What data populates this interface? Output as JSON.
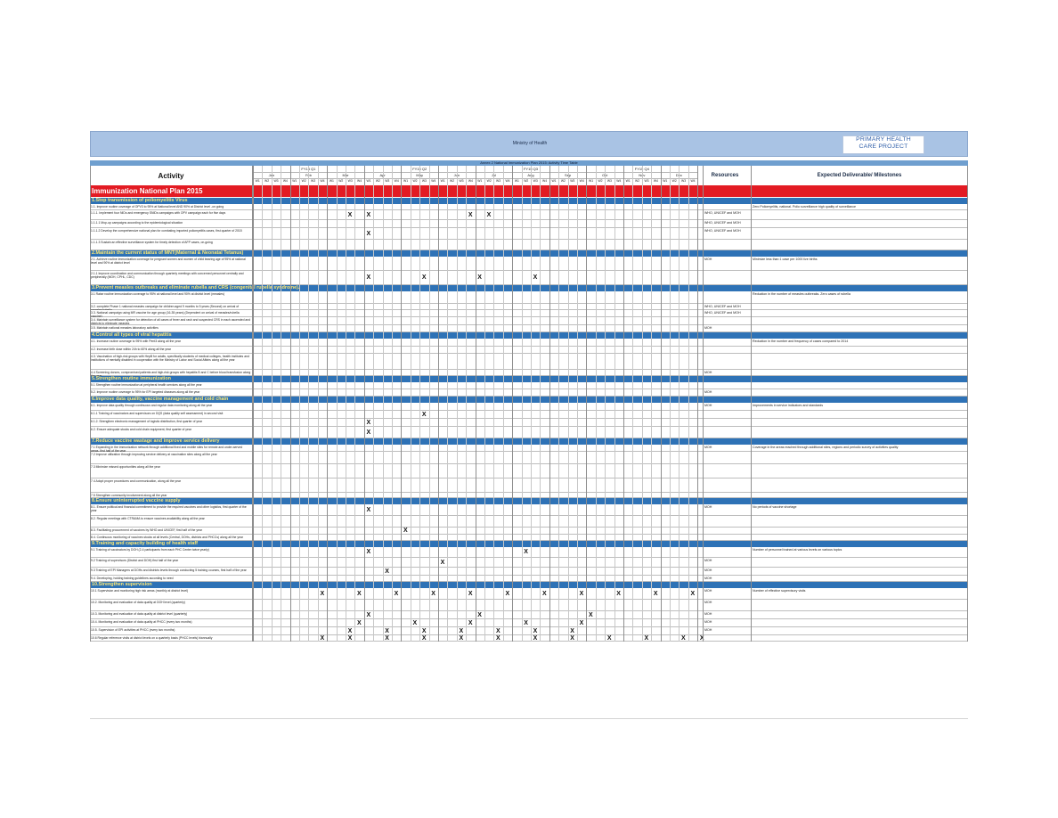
{
  "header": {
    "ministry": "Ministry of Health",
    "logo_line1": "PRIMARY HEALTH",
    "logo_line2": "CARE PROJECT"
  },
  "annex_title": "Annex 2 National Immunization Plan 2015: Activity Time Table",
  "columns": {
    "activity": "Activity",
    "resources": "Resources",
    "deliverables": "Expected Deliverable/ Milestones",
    "quarters": [
      "FY15 Q1",
      "FY15 Q2",
      "FY15 Q3",
      "FY15 Q4"
    ],
    "months": [
      "Jan",
      "Feb",
      "Mar",
      "Apr",
      "May",
      "Jun",
      "Jul",
      "Aug",
      "Sep",
      "Oct",
      "Nov",
      "Dec"
    ],
    "weeks": [
      "W1",
      "W2",
      "W3",
      "W4"
    ]
  },
  "plan_title": "Immunization National Plan 2015",
  "mark_symbol": "X",
  "sections": [
    {
      "title": "1.Stop transmission of poliomyelitis Virus",
      "rows": [
        {
          "activity": "1.1. Improve routine coverage of OPV3 to 95% at National level AND 90% at District level -on going",
          "res": "",
          "del": "Zero Poliomyelitis, national. Polio surveillance high quality of surveillance",
          "marks": [],
          "h": 7
        },
        {
          "activity": "1.1.1. Implement four NIDs and emergency SNIDs campaigns with OPV campaign each for five days",
          "res": "WHO, UNICEF and MOH",
          "del": "",
          "marks": [
            10,
            12,
            23,
            25
          ],
          "h": 11
        },
        {
          "activity": "1.1.1.1 Mop-up campaigns according to the epidemiological situation",
          "res": "WHO, UNICEF and MOH",
          "del": "",
          "marks": [],
          "h": 9
        },
        {
          "activity": "1.1.1.2 Develop the comprehensive national plan for combating imported poliomyelitis cases, first quarter of 2015",
          "res": "WHO, UNICEF and MOH",
          "del": "",
          "marks": [
            12
          ],
          "h": 13
        },
        {
          "activity": "1.1.1.3 Sustain an effective surveillance system for timely detection of AFP cases, on-going",
          "res": "",
          "del": "",
          "marks": [],
          "h": 12
        }
      ]
    },
    {
      "title": "2.Maintain the current status of MNT(Maternal & Neonatal Tetanus)",
      "rows": [
        {
          "activity": "2.1. Achieve routine immunization coverage for pregnant women and women of child bearing age of 95% at national level and 90% at district level",
          "res": "MOH",
          "del": "Minimize less than 1 case per 1000 live births",
          "marks": [],
          "h": 16
        },
        {
          "activity": "2.1.1 Improve coordination and communication through quarterly meetings with concerned personnel centrally and peripherally (MOH, CPHL, CDC)",
          "res": "",
          "del": "",
          "marks": [
            12,
            18,
            24,
            30
          ],
          "h": 16
        }
      ]
    },
    {
      "title": "3.Prevent measles outbreaks and eliminate rubella and CRS (congenital rubella syndrome).",
      "rows": [
        {
          "activity": "3.1 Raise routine immunization coverage to 95% at national level and 90% at district level (measles)",
          "res": "",
          "del": "Reduction in the number of measles outbreaks. Zero cases of rubella",
          "marks": [],
          "h": 14
        },
        {
          "activity": "3.2. complete Phase 1 national measles campaign for children aged 9 months to 5 years (Second) on arrival of measles/rubella",
          "res": "WHO, UNICEF and MOH",
          "del": "",
          "marks": [],
          "h": 7
        },
        {
          "activity": "3.3. National campaign using MR vaccine for age group (16-35 years) (Dependent on arrival of measles/rubella vaccine)",
          "res": "WHO, UNICEF and MOH",
          "del": "",
          "marks": [],
          "h": 8
        },
        {
          "activity": "3.4. Maintain surveillance system for detection of all cases of fever and rash and suspected CRS in each ascended and districts to eliminate measles",
          "res": "",
          "del": "",
          "marks": [],
          "h": 9
        },
        {
          "activity": "3.5. Maintain national measles laboratory activities",
          "res": "MOH",
          "del": "",
          "marks": [],
          "h": 8
        }
      ]
    },
    {
      "title": "4.Control all types of viral hepatitis",
      "rows": [
        {
          "activity": "4.1. Increase routine coverage to 95% with Pent3 along all the year",
          "res": "",
          "del": "Reduction in the number and frequency of cases compared to 2014",
          "marks": [],
          "h": 9
        },
        {
          "activity": "4.2. Increase birth dose within 24h to 60% along all the year",
          "res": "",
          "del": "",
          "marks": [],
          "h": 8
        },
        {
          "activity": "4.3. Vaccination of high-risk groups with HepB for adults, specifically students of medical colleges, health institutes and institutions of mentally disabled in cooperation with the Ministry of Labor and Social Affairs along all the year",
          "res": "",
          "del": "",
          "marks": [],
          "h": 18
        },
        {
          "activity": "4.4 Screening donors, compromised patients and high-risk groups with hepatitis B and C before blood transfusion along the year",
          "res": "MOH",
          "del": "",
          "marks": [],
          "h": 7
        }
      ]
    },
    {
      "title": "5.Strengthen routine immunization",
      "rows": [
        {
          "activity": "5.1 Strengthen routine immunization at peripheral health services along all the year",
          "res": "",
          "del": "",
          "marks": [],
          "h": 8
        },
        {
          "activity": "5.2. Improve routine coverage to 95% for EPI targeted diseases along all the year",
          "res": "MOH",
          "del": "",
          "marks": [],
          "h": 8
        }
      ]
    },
    {
      "title": "6.Improve data quality, vaccine management and cold chain",
      "rows": [
        {
          "activity": "6.1. Improve data quality through continuous and regular data monitoring along all the year",
          "res": "MOH",
          "del": "Improvements in service indicators and standards",
          "marks": [],
          "h": 9
        },
        {
          "activity": "6.1.1 Training of vaccinators and supervisors on DQS (data quality self assessment) in second visit",
          "res": "",
          "del": "",
          "marks": [
            18
          ],
          "h": 9
        },
        {
          "activity": "6.1.2. Strengthen electronic management of logistic distribution, first quarter of year",
          "res": "",
          "del": "",
          "marks": [
            12
          ],
          "h": 9
        },
        {
          "activity": "6.2. Ensure adequate stocks and cold chain equipment, first quarter of year",
          "res": "",
          "del": "",
          "marks": [
            12
          ],
          "h": 13
        }
      ]
    },
    {
      "title": "7.Reduce vaccine wastage and improve service delivery",
      "rows": [
        {
          "activity": "7.1 Expanding in the immunization network through additional fixed and mobile sites for remote and under-served areas, first half of the year",
          "res": "MOH",
          "del": "Coverage in the areas reached through additional sites, regions and periodic survey of activities quality",
          "marks": [],
          "h": 8
        },
        {
          "activity": "7.2 Improve utilization through improving service delivery at vaccination sites along all the year",
          "res": "",
          "del": "",
          "marks": [],
          "h": 14
        },
        {
          "activity": "7.3 Minimize missed opportunities along all the year",
          "res": "",
          "del": "",
          "marks": [],
          "h": 16
        },
        {
          "activity": "7.4 Adopt proper procedures and communication, along all the year",
          "res": "",
          "del": "",
          "marks": [],
          "h": 16
        },
        {
          "activity": "7.5 Strengthen community involvement along all the year",
          "res": "",
          "del": "",
          "marks": [],
          "h": 6
        }
      ]
    },
    {
      "title": "8.Ensure uninterrupted vaccine supply",
      "rows": [
        {
          "activity": "8.1. Ensure political and financial commitment to provide the required vaccines and other logistics, first quarter of the year",
          "res": "MOH",
          "del": "No periods of vaccine shortage",
          "marks": [
            12
          ],
          "h": 13
        },
        {
          "activity": "8.2. Regular meetings with CTRAMA to ensure vaccines availability along all the year",
          "res": "",
          "del": "",
          "marks": [],
          "h": 13
        },
        {
          "activity": "8.3. Facilitating procurement of vaccines by WHO and UNICEF, first half of the year",
          "res": "",
          "del": "",
          "marks": [
            16
          ],
          "h": 8
        },
        {
          "activity": "8.4. Continuous monitoring of vaccines stocks at all levels (Central, DOHs, districts and PHCCs) along all the year",
          "res": "",
          "del": "",
          "marks": [],
          "h": 7
        }
      ]
    },
    {
      "title": "9.Training and capacity building of health staff",
      "rows": [
        {
          "activity": "9.1 Training of vaccinators by DOH (2-4 participants from each PHC Center twice yearly)",
          "res": "",
          "del": "Number of personnel trained at various levels on various topics",
          "marks": [
            12,
            29
          ],
          "h": 12
        },
        {
          "activity": "9.2 Training of supervisors (District and DOH) first half of the year",
          "res": "MOH",
          "del": "",
          "marks": [
            20
          ],
          "h": 11
        },
        {
          "activity": "9.3 Training of EPI Managers at DOHs and districts levels through conducting 5 training courses, first half of the year",
          "res": "MOH",
          "del": "",
          "marks": [
            14
          ],
          "h": 9
        },
        {
          "activity": "9.4. Developing, holding training guidelines according to need",
          "res": "MOH",
          "del": "",
          "marks": [],
          "h": 7
        }
      ]
    },
    {
      "title": "10.Strengthen supervision",
      "rows": [
        {
          "activity": "10.1 Supervision and monitoring high risk areas (monthly at district level)",
          "res": "MOH",
          "del": "Number of effective supervisory visits",
          "marks": [
            7,
            11,
            15,
            19,
            23,
            27,
            31,
            35,
            39,
            43,
            47
          ],
          "h": 13
        },
        {
          "activity": "10.2. Monitoring and evaluation of data quality at DOH level (quarterly)",
          "res": "MOH",
          "del": "",
          "marks": [],
          "h": 13
        },
        {
          "activity": "10.3. Monitoring and evaluation of data quality at district level (quarterly)",
          "res": "MOH",
          "del": "",
          "marks": [
            12,
            24,
            36
          ],
          "h": 9
        },
        {
          "activity": "10.4. Monitoring and evaluation of data quality at PHCC (every two months)",
          "res": "MOH",
          "del": "",
          "marks": [
            11,
            17,
            23,
            29,
            35
          ],
          "h": 9
        },
        {
          "activity": "10.5. Supervision of EPI activities at PHCC (every two months)",
          "res": "MOH",
          "del": "",
          "marks": [
            10,
            14,
            18,
            22,
            26,
            30,
            34
          ],
          "h": 9
        },
        {
          "activity": "10.6 Regular reference visits at district levels on a quarterly basis (PHCC levels) biannually",
          "res": "",
          "del": "",
          "marks": [
            7,
            10,
            14,
            18,
            22,
            26,
            30,
            34,
            38,
            42,
            46,
            48
          ],
          "h": 7
        }
      ]
    }
  ]
}
